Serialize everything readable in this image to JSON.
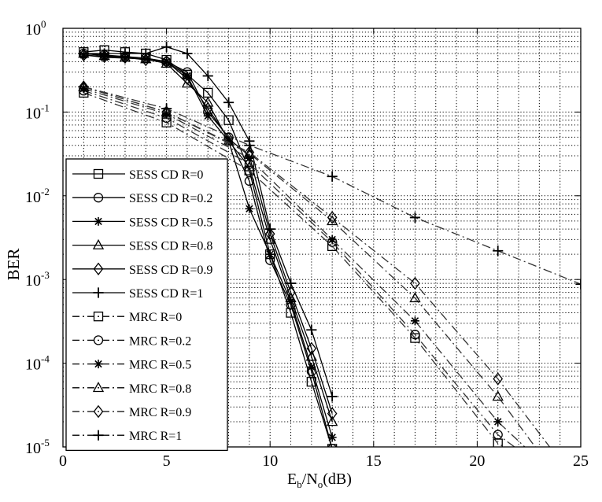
{
  "chart_data": {
    "type": "line",
    "xlabel": {
      "main": "E",
      "sub1": "b",
      "mid": "/N",
      "sub2": "o",
      "tail": "(dB)"
    },
    "ylabel": "BER",
    "xlim": [
      0,
      25
    ],
    "ylim_log10": [
      -5,
      0
    ],
    "y_scale": "log",
    "grid": "on (dotted, major and minor)",
    "legend_position": "lower-left",
    "x_ticks": [
      "0",
      "5",
      "10",
      "15",
      "20",
      "25"
    ],
    "y_ticks": [
      {
        "base": "10",
        "exp": "0",
        "value": 1
      },
      {
        "base": "10",
        "exp": "-1",
        "value": 0.1
      },
      {
        "base": "10",
        "exp": "-2",
        "value": 0.01
      },
      {
        "base": "10",
        "exp": "-3",
        "value": 0.001
      },
      {
        "base": "10",
        "exp": "-4",
        "value": 0.0001
      },
      {
        "base": "10",
        "exp": "-5",
        "value": 1e-05
      }
    ],
    "series": [
      {
        "name": "SESS CD R=0",
        "marker": "square",
        "line": "solid",
        "x": [
          1,
          2,
          3,
          4,
          5,
          6,
          7,
          8,
          9,
          10,
          11,
          12,
          13,
          13.8
        ],
        "y": [
          0.52,
          0.55,
          0.52,
          0.5,
          0.42,
          0.28,
          0.17,
          0.08,
          0.02,
          0.002,
          0.0004,
          6e-05,
          9.5e-06,
          1e-05
        ]
      },
      {
        "name": "SESS CD R=0.2",
        "marker": "circle",
        "line": "solid",
        "x": [
          1,
          2,
          3,
          4,
          5,
          6,
          7,
          8,
          9,
          10,
          11,
          12,
          13
        ],
        "y": [
          0.5,
          0.48,
          0.46,
          0.44,
          0.4,
          0.3,
          0.1,
          0.05,
          0.015,
          0.0017,
          0.0005,
          8e-05,
          9.5e-06
        ]
      },
      {
        "name": "SESS CD R=0.5",
        "marker": "star",
        "line": "solid",
        "x": [
          1,
          2,
          3,
          4,
          5,
          6,
          7,
          8,
          9,
          10,
          11,
          12,
          13
        ],
        "y": [
          0.48,
          0.45,
          0.44,
          0.43,
          0.4,
          0.27,
          0.09,
          0.045,
          0.007,
          0.002,
          0.00055,
          9e-05,
          1.3e-05
        ]
      },
      {
        "name": "SESS CD R=0.8",
        "marker": "triangle",
        "line": "solid",
        "x": [
          1,
          2,
          3,
          4,
          5,
          6,
          7,
          8,
          9,
          10,
          11,
          12,
          13
        ],
        "y": [
          0.5,
          0.47,
          0.45,
          0.43,
          0.38,
          0.22,
          0.13,
          0.045,
          0.022,
          0.003,
          0.0006,
          0.00012,
          2e-05
        ]
      },
      {
        "name": "SESS CD R=0.9",
        "marker": "diamond",
        "line": "solid",
        "x": [
          1,
          2,
          3,
          4,
          5,
          6,
          7,
          8,
          9,
          10,
          11,
          12,
          13
        ],
        "y": [
          0.48,
          0.46,
          0.45,
          0.42,
          0.4,
          0.25,
          0.11,
          0.048,
          0.03,
          0.0035,
          0.0007,
          0.00015,
          2.5e-05
        ]
      },
      {
        "name": "SESS CD R=1",
        "marker": "plus",
        "line": "solid",
        "x": [
          1,
          2,
          3,
          4,
          5,
          6,
          7,
          8,
          9,
          10,
          11,
          12,
          13
        ],
        "y": [
          0.5,
          0.5,
          0.5,
          0.5,
          0.6,
          0.5,
          0.27,
          0.13,
          0.045,
          0.004,
          0.0009,
          0.00025,
          4e-05
        ]
      },
      {
        "name": "MRC R=0",
        "marker": "square",
        "line": "dashdot",
        "x": [
          1,
          5,
          9,
          13,
          17,
          21,
          21.3
        ],
        "y": [
          0.17,
          0.075,
          0.02,
          0.0025,
          0.0002,
          1.1e-05,
          1e-05
        ]
      },
      {
        "name": "MRC R=0.2",
        "marker": "circle",
        "line": "dashdot",
        "x": [
          1,
          5,
          9,
          13,
          17,
          21,
          21.8
        ],
        "y": [
          0.18,
          0.085,
          0.024,
          0.0028,
          0.00022,
          1.4e-05,
          1e-05
        ]
      },
      {
        "name": "MRC R=0.5",
        "marker": "star",
        "line": "dashdot",
        "x": [
          1,
          5,
          9,
          13,
          17,
          21,
          22.3
        ],
        "y": [
          0.19,
          0.095,
          0.028,
          0.003,
          0.00032,
          2e-05,
          1e-05
        ]
      },
      {
        "name": "MRC R=0.8",
        "marker": "triangle",
        "line": "dashdot",
        "x": [
          1,
          5,
          9,
          13,
          17,
          21,
          22.8
        ],
        "y": [
          0.2,
          0.1,
          0.032,
          0.005,
          0.0006,
          4e-05,
          1e-05
        ]
      },
      {
        "name": "MRC R=0.9",
        "marker": "diamond",
        "line": "dashdot",
        "x": [
          1,
          5,
          9,
          13,
          17,
          21,
          23.5
        ],
        "y": [
          0.2,
          0.1,
          0.033,
          0.0055,
          0.0009,
          6.5e-05,
          1e-05
        ]
      },
      {
        "name": "MRC R=1",
        "marker": "plus",
        "line": "dashdot",
        "x": [
          1,
          5,
          9,
          13,
          17,
          21,
          25
        ],
        "y": [
          0.2,
          0.11,
          0.04,
          0.017,
          0.0055,
          0.0022,
          0.00088
        ]
      }
    ]
  }
}
